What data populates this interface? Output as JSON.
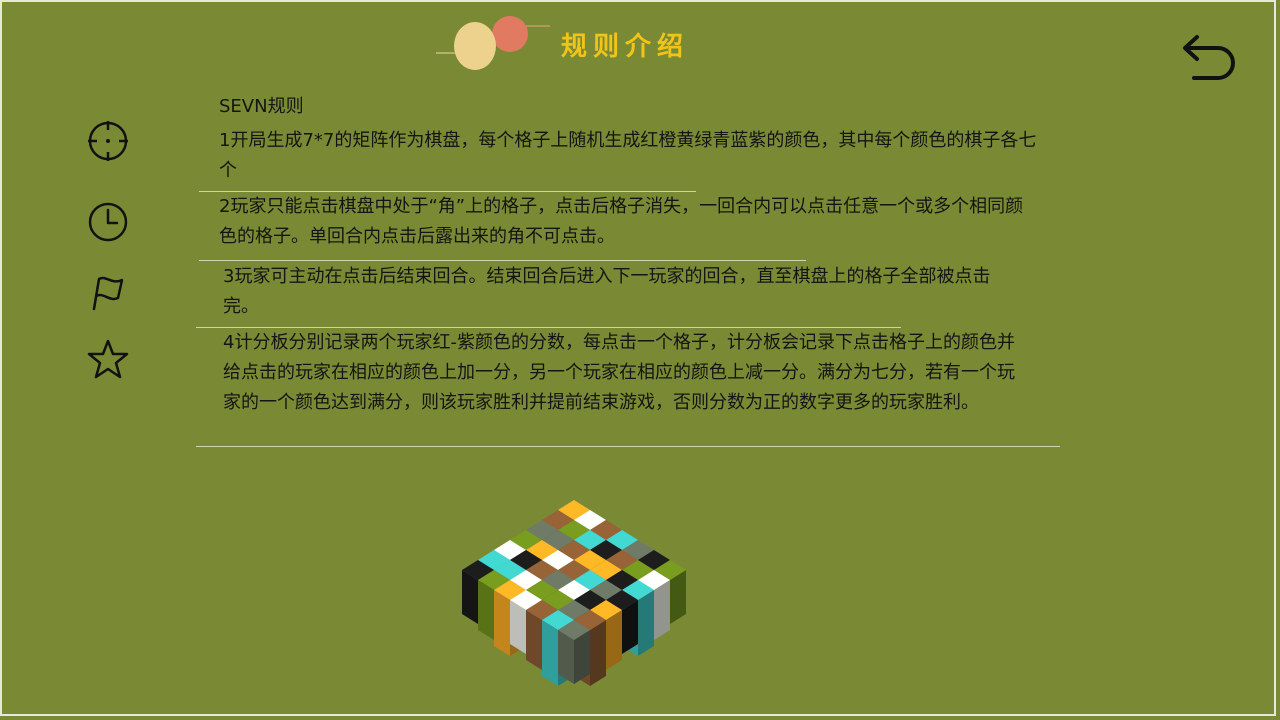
{
  "header": {
    "title": "规则介绍"
  },
  "sidebar": {
    "items": [
      {
        "icon": "crosshair-icon"
      },
      {
        "icon": "clock-icon"
      },
      {
        "icon": "flag-icon"
      },
      {
        "icon": "star-icon"
      }
    ]
  },
  "nav": {
    "back_icon": "undo-arrow-icon"
  },
  "rules": {
    "heading": "SEVN规则",
    "items": [
      "1开局生成7*7的矩阵作为棋盘，每个格子上随机生成红橙黄绿青蓝紫的颜色，其中每个颜色的棋子各七个",
      "2玩家只能点击棋盘中处于“角”上的格子，点击后格子消失，一回合内可以点击任意一个或多个相同颜色的格子。单回合内点击后露出来的角不可点击。",
      "3玩家可主动在点击后结束回合。结束回合后进入下一玩家的回合，直至棋盘上的格子全部被点击完。",
      "4计分板分别记录两个玩家红-紫颜色的分数，每点击一个格子，计分板会记录下点击格子上的颜色并给点击的玩家在相应的颜色上加一分，另一个玩家在相应的颜色上减一分。满分为七分，若有一个玩家的一个颜色达到满分，则该玩家胜利并提前结束游戏，否则分数为正的数字更多的玩家胜利。"
    ]
  },
  "colors": {
    "background": "#7a8a34",
    "title": "#f2c418",
    "text": "#141414",
    "piece_colors": [
      "#f5a823",
      "#3cc5c0",
      "#6e8f1c",
      "#8a5a32",
      "#1a1a1a",
      "#eeeee6",
      "#66705e"
    ]
  }
}
